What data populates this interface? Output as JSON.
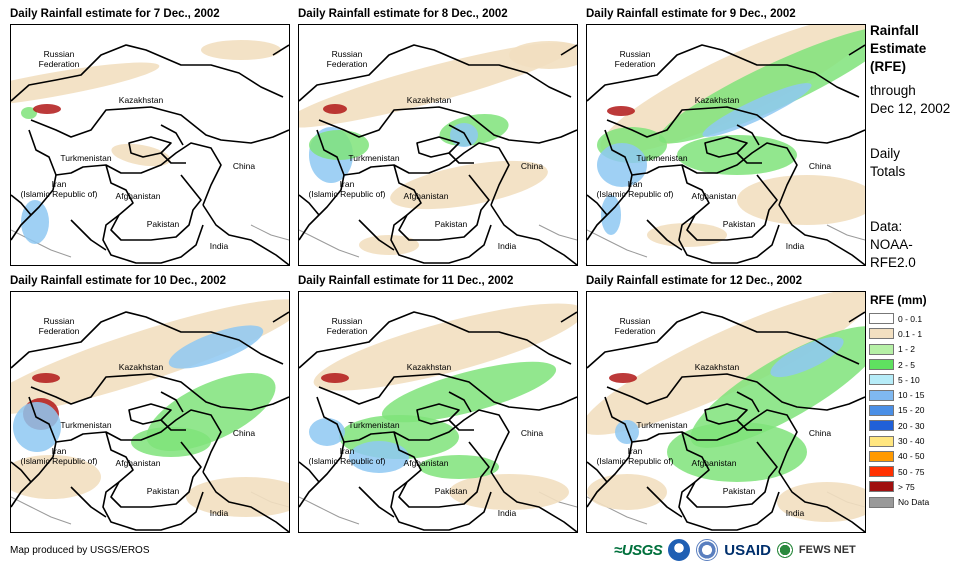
{
  "panels": [
    {
      "title": "Daily Rainfall estimate for 7 Dec., 2002"
    },
    {
      "title": "Daily Rainfall estimate for 8 Dec., 2002"
    },
    {
      "title": "Daily Rainfall estimate for 9 Dec., 2002"
    },
    {
      "title": "Daily Rainfall estimate for 10 Dec., 2002"
    },
    {
      "title": "Daily Rainfall estimate for 11 Dec., 2002"
    },
    {
      "title": "Daily Rainfall estimate for 12 Dec., 2002"
    }
  ],
  "places": {
    "russia": "Russian\nFederation",
    "kazakhstan": "Kazakhstan",
    "turkmenistan": "Turkmenistan",
    "iran": "Iran\n(Islamic Republic of)",
    "afghanistan": "Afghanistan",
    "pakistan": "Pakistan",
    "china": "China",
    "india": "India"
  },
  "side": {
    "title_line1": "Rainfall",
    "title_line2": "Estimate",
    "title_line3": "(RFE)",
    "through": "through",
    "date": "Dec 12, 2002",
    "totals_line1": "Daily",
    "totals_line2": "Totals",
    "data_line1": "Data:",
    "data_line2": "NOAA-",
    "data_line3": "RFE2.0"
  },
  "legend": {
    "title": "RFE (mm)",
    "items": [
      {
        "label": "0 - 0.1",
        "color": "#ffffff"
      },
      {
        "label": "0.1 - 1",
        "color": "#f2dfc0"
      },
      {
        "label": "1 - 2",
        "color": "#b6f0a6"
      },
      {
        "label": "2 - 5",
        "color": "#5fe060"
      },
      {
        "label": "5 - 10",
        "color": "#b6ecf8"
      },
      {
        "label": "10 - 15",
        "color": "#7fb8f0"
      },
      {
        "label": "15 - 20",
        "color": "#4a8fe6"
      },
      {
        "label": "20 - 30",
        "color": "#2060d8"
      },
      {
        "label": "30 - 40",
        "color": "#ffe680"
      },
      {
        "label": "40 - 50",
        "color": "#ff9a00"
      },
      {
        "label": "50 - 75",
        "color": "#ff3000"
      },
      {
        "label": "> 75",
        "color": "#a01010"
      },
      {
        "label": "No Data",
        "color": "#999999"
      }
    ]
  },
  "footer": {
    "credit": "Map produced by USGS/EROS"
  },
  "logos": {
    "usgs": "≈USGS",
    "usaid": "USAID",
    "fews": "FEWS NET"
  },
  "rain": [
    [
      [
        "t",
        40,
        60,
        110,
        12,
        -10
      ],
      [
        "t",
        230,
        25,
        40,
        10,
        0
      ],
      [
        "g",
        18,
        88,
        8,
        6,
        0
      ],
      [
        "r",
        36,
        84,
        14,
        5,
        0
      ],
      [
        "b",
        24,
        197,
        14,
        22,
        0
      ],
      [
        "t",
        130,
        130,
        30,
        10,
        10
      ]
    ],
    [
      [
        "t",
        130,
        60,
        150,
        18,
        -15
      ],
      [
        "t",
        250,
        30,
        40,
        14,
        0
      ],
      [
        "b",
        32,
        130,
        22,
        28,
        0
      ],
      [
        "g",
        40,
        120,
        30,
        15,
        0
      ],
      [
        "r",
        36,
        84,
        12,
        5,
        0
      ],
      [
        "t",
        170,
        160,
        80,
        20,
        -10
      ],
      [
        "g",
        175,
        105,
        35,
        15,
        -10
      ],
      [
        "b",
        165,
        110,
        14,
        12,
        0
      ],
      [
        "t",
        90,
        220,
        30,
        10,
        0
      ]
    ],
    [
      [
        "t",
        150,
        60,
        150,
        30,
        -25
      ],
      [
        "g",
        190,
        60,
        130,
        22,
        -25
      ],
      [
        "b",
        170,
        85,
        60,
        10,
        -25
      ],
      [
        "g",
        45,
        120,
        35,
        18,
        0
      ],
      [
        "b",
        35,
        140,
        25,
        22,
        0
      ],
      [
        "r",
        34,
        86,
        14,
        5,
        0
      ],
      [
        "g",
        150,
        130,
        60,
        20,
        0
      ],
      [
        "t",
        220,
        175,
        70,
        25,
        0
      ],
      [
        "b",
        24,
        190,
        10,
        20,
        0
      ],
      [
        "t",
        100,
        210,
        40,
        12,
        0
      ]
    ],
    [
      [
        "t",
        130,
        65,
        170,
        25,
        -18
      ],
      [
        "b",
        205,
        55,
        50,
        14,
        -20
      ],
      [
        "g",
        200,
        120,
        70,
        28,
        -25
      ],
      [
        "g",
        160,
        150,
        40,
        15,
        0
      ],
      [
        "r",
        30,
        122,
        18,
        16,
        0
      ],
      [
        "b",
        26,
        135,
        24,
        25,
        0
      ],
      [
        "r",
        35,
        86,
        14,
        5,
        0
      ],
      [
        "t",
        40,
        185,
        50,
        22,
        0
      ],
      [
        "t",
        235,
        205,
        60,
        20,
        0
      ]
    ],
    [
      [
        "t",
        150,
        55,
        140,
        25,
        -15
      ],
      [
        "g",
        170,
        100,
        90,
        20,
        -15
      ],
      [
        "g",
        100,
        145,
        60,
        22,
        0
      ],
      [
        "b",
        28,
        140,
        18,
        14,
        0
      ],
      [
        "r",
        36,
        86,
        14,
        5,
        0
      ],
      [
        "b",
        80,
        165,
        30,
        16,
        0
      ],
      [
        "t",
        210,
        200,
        60,
        18,
        0
      ],
      [
        "g",
        160,
        175,
        40,
        12,
        0
      ]
    ],
    [
      [
        "t",
        140,
        70,
        160,
        30,
        -25
      ],
      [
        "g",
        200,
        95,
        110,
        30,
        -30
      ],
      [
        "b",
        220,
        65,
        40,
        12,
        -25
      ],
      [
        "r",
        36,
        86,
        14,
        5,
        0
      ],
      [
        "g",
        150,
        160,
        70,
        30,
        0
      ],
      [
        "t",
        40,
        200,
        40,
        18,
        0
      ],
      [
        "t",
        240,
        210,
        50,
        20,
        0
      ],
      [
        "b",
        40,
        140,
        12,
        12,
        0
      ]
    ]
  ]
}
